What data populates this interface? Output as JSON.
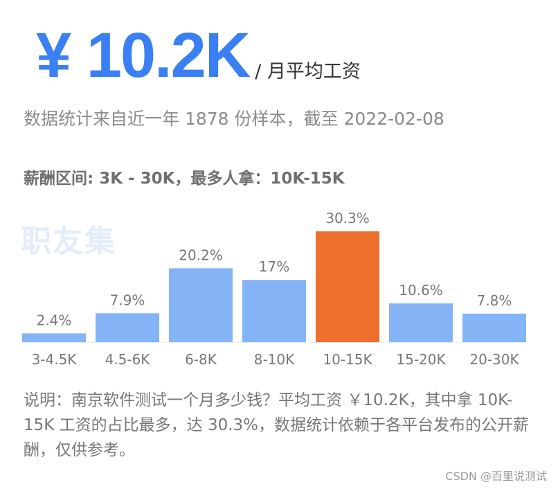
{
  "header": {
    "salary_value": "¥ 10.2K",
    "salary_unit": "/ 月平均工资"
  },
  "stats_text": "数据统计来自近一年 1878 份样本，截至 2022-02-08",
  "range_text": "薪酬区间: 3K - 30K，最多人拿：10K-15K",
  "watermark": "职友集",
  "colors": {
    "accent": "#3a7ff3",
    "bar_default": "#85b4f6",
    "bar_highlight": "#ec6f2d"
  },
  "chart_data": {
    "type": "bar",
    "categories": [
      "3-4.5K",
      "4.5-6K",
      "6-8K",
      "8-10K",
      "10-15K",
      "15-20K",
      "20-30K"
    ],
    "values": [
      2.4,
      7.9,
      20.2,
      17,
      30.3,
      10.6,
      7.8
    ],
    "value_labels": [
      "2.4%",
      "7.9%",
      "20.2%",
      "17%",
      "30.3%",
      "10.6%",
      "7.8%"
    ],
    "highlight_category": "10-15K",
    "ylim": [
      0,
      30.3
    ],
    "title": "",
    "xlabel": "",
    "ylabel": "",
    "grid": false
  },
  "note_text": "说明：南京软件测试一个月多少钱？平均工资 ￥10.2K，其中拿 10K-15K 工资的占比最多，达 30.3%，数据统计依赖于各平台发布的公开薪酬，仅供参考。",
  "footer_credit": "CSDN @百里说测试"
}
